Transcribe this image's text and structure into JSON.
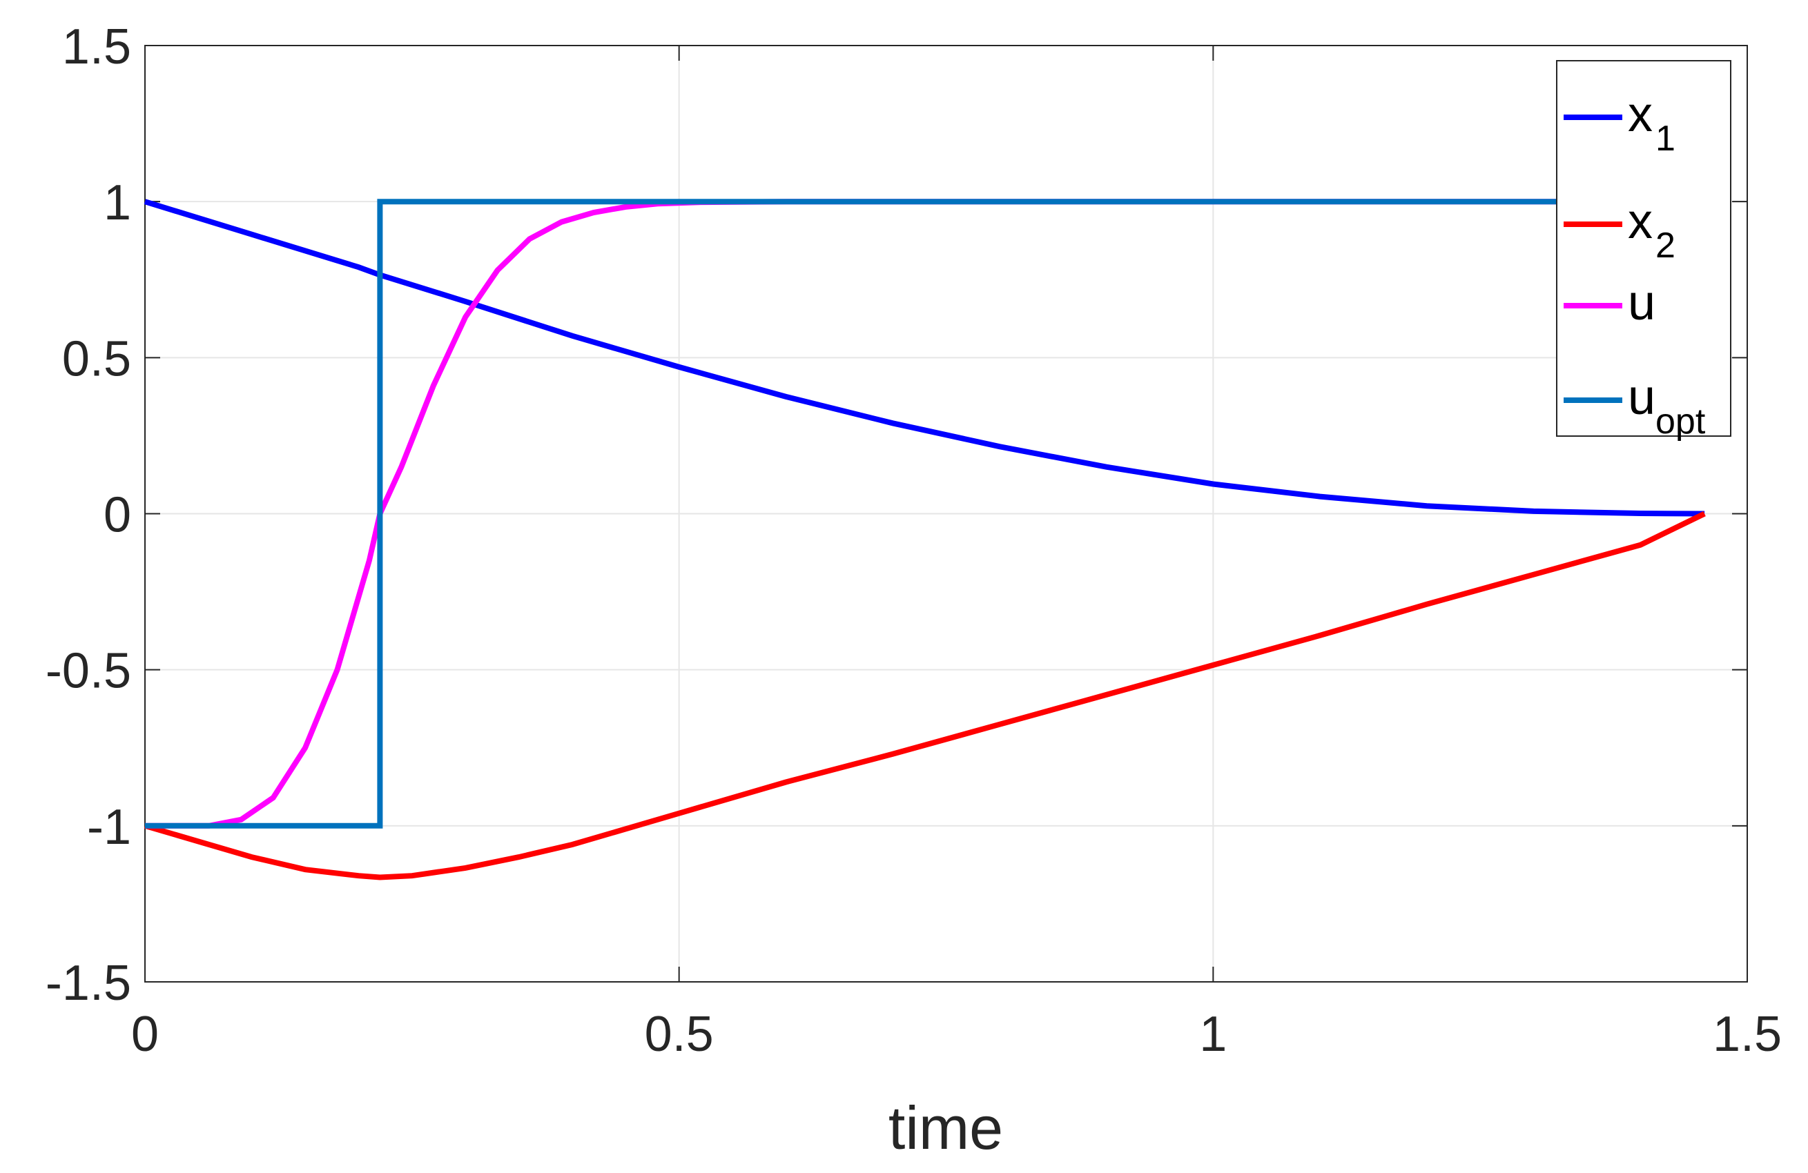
{
  "chart_data": {
    "type": "line",
    "xlabel": "time",
    "ylabel": "",
    "xlim": [
      0,
      1.5
    ],
    "ylim": [
      -1.5,
      1.5
    ],
    "xticks": [
      0,
      0.5,
      1,
      1.5
    ],
    "xtick_labels": [
      "0",
      "0.5",
      "1",
      "1.5"
    ],
    "yticks": [
      -1.5,
      -1,
      -0.5,
      0,
      0.5,
      1,
      1.5
    ],
    "ytick_labels": [
      "-1.5",
      "-1",
      "-0.5",
      "0",
      "0.5",
      "1",
      "1.5"
    ],
    "grid": true,
    "legend_position": "top-right",
    "series": [
      {
        "name": "x",
        "subscript": "1",
        "color": "#0000ff",
        "x": [
          0,
          0.1,
          0.2,
          0.22,
          0.3,
          0.4,
          0.5,
          0.6,
          0.7,
          0.8,
          0.9,
          1.0,
          1.1,
          1.2,
          1.3,
          1.4,
          1.46
        ],
        "y": [
          1,
          0.895,
          0.79,
          0.765,
          0.68,
          0.57,
          0.47,
          0.375,
          0.29,
          0.215,
          0.15,
          0.095,
          0.055,
          0.025,
          0.008,
          0.001,
          0
        ]
      },
      {
        "name": "x",
        "subscript": "2",
        "color": "#ff0000",
        "x": [
          0,
          0.05,
          0.1,
          0.15,
          0.2,
          0.22,
          0.25,
          0.3,
          0.35,
          0.4,
          0.5,
          0.6,
          0.7,
          0.8,
          0.9,
          1.0,
          1.1,
          1.2,
          1.3,
          1.4,
          1.46
        ],
        "y": [
          -1,
          -1.05,
          -1.1,
          -1.14,
          -1.16,
          -1.165,
          -1.16,
          -1.135,
          -1.1,
          -1.06,
          -0.96,
          -0.86,
          -0.77,
          -0.675,
          -0.58,
          -0.485,
          -0.39,
          -0.29,
          -0.195,
          -0.1,
          0
        ]
      },
      {
        "name": "u",
        "subscript": "",
        "color": "#ff00ff",
        "x": [
          0,
          0.03,
          0.06,
          0.09,
          0.12,
          0.15,
          0.18,
          0.21,
          0.22,
          0.24,
          0.27,
          0.3,
          0.33,
          0.36,
          0.39,
          0.42,
          0.45,
          0.48,
          0.52,
          0.6,
          1.46
        ],
        "y": [
          -1,
          -1,
          -1,
          -0.98,
          -0.91,
          -0.75,
          -0.5,
          -0.15,
          0,
          0.15,
          0.41,
          0.63,
          0.78,
          0.88,
          0.935,
          0.965,
          0.983,
          0.993,
          0.998,
          1,
          1
        ]
      },
      {
        "name": "u",
        "subscript": "opt",
        "color": "#0072bd",
        "x": [
          0,
          0.22,
          0.22,
          1.46
        ],
        "y": [
          -1,
          -1,
          1,
          1
        ]
      }
    ]
  }
}
